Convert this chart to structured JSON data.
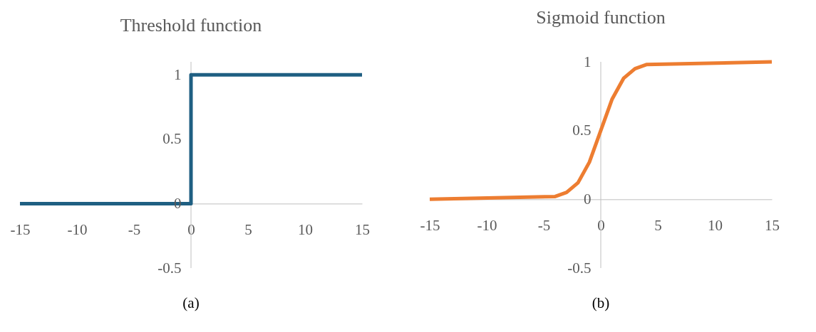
{
  "chart_data": [
    {
      "type": "step",
      "title": "Threshold function",
      "annotations": [
        "(a)"
      ],
      "xlim": [
        -15,
        15
      ],
      "ylim": [
        -0.5,
        1.1
      ],
      "xticks": [
        -15,
        -10,
        -5,
        0,
        5,
        10,
        15
      ],
      "yticks": [
        -0.5,
        0,
        0.5,
        1
      ],
      "grid": false,
      "series": [
        {
          "color": "#1f5f82",
          "x": [
            -15,
            0,
            15
          ],
          "values": [
            0,
            1,
            1
          ]
        }
      ]
    },
    {
      "type": "line",
      "title": "Sigmoid function",
      "annotations": [
        "(b)"
      ],
      "xlim": [
        -15,
        15
      ],
      "ylim": [
        -0.5,
        1
      ],
      "xticks": [
        -15,
        -10,
        -5,
        0,
        5,
        10,
        15
      ],
      "yticks": [
        -0.5,
        0,
        0.5,
        1
      ],
      "grid": false,
      "series": [
        {
          "color": "#ed7d31",
          "x": [
            -15,
            -4,
            -3,
            -2,
            -1,
            0,
            1,
            2,
            3,
            4,
            15
          ],
          "values": [
            0,
            0.02,
            0.05,
            0.12,
            0.27,
            0.5,
            0.73,
            0.88,
            0.95,
            0.98,
            1
          ]
        }
      ]
    }
  ]
}
